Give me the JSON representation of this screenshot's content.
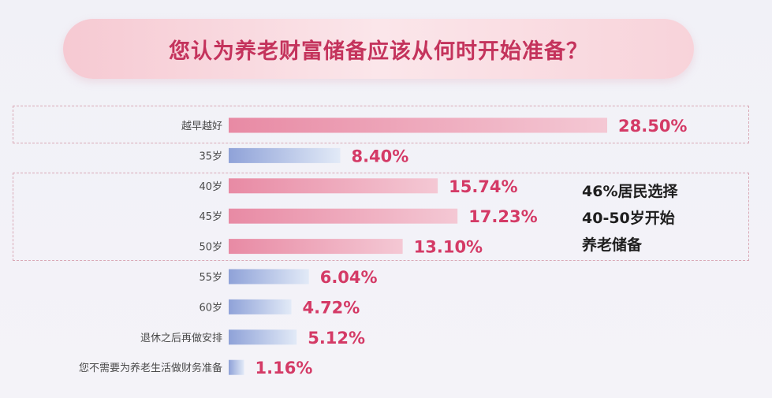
{
  "header": {
    "title": "您认为养老财富储备应该从何时开始准备？"
  },
  "callout": {
    "lines": [
      "46%居民选择",
      "40-50岁开始",
      "养老储备"
    ]
  },
  "colors": {
    "pink_bar_start": "#e88aa4",
    "pink_bar_end": "#f4c8d4",
    "blue_bar_start": "#8fa2d8",
    "blue_bar_end": "#e2eaf7",
    "value_text": "#d43a66",
    "dash_border": "#d9a9b6"
  },
  "chart_data": {
    "type": "bar",
    "orientation": "horizontal",
    "categories": [
      "越早越好",
      "35岁",
      "40岁",
      "45岁",
      "50岁",
      "55岁",
      "60岁",
      "退休之后再做安排",
      "您不需要为养老生活做财务准备"
    ],
    "values": [
      28.5,
      8.4,
      15.74,
      17.23,
      13.1,
      6.04,
      4.72,
      5.12,
      1.16
    ],
    "value_labels": [
      "28.50%",
      "8.40%",
      "15.74%",
      "17.23%",
      "13.10%",
      "6.04%",
      "4.72%",
      "5.12%",
      "1.16%"
    ],
    "highlight": [
      true,
      false,
      true,
      true,
      true,
      false,
      false,
      false,
      false
    ],
    "xlim": [
      0,
      28.5
    ],
    "title": "您认为养老财富储备应该从何时开始准备？",
    "xlabel": "",
    "ylabel": ""
  }
}
